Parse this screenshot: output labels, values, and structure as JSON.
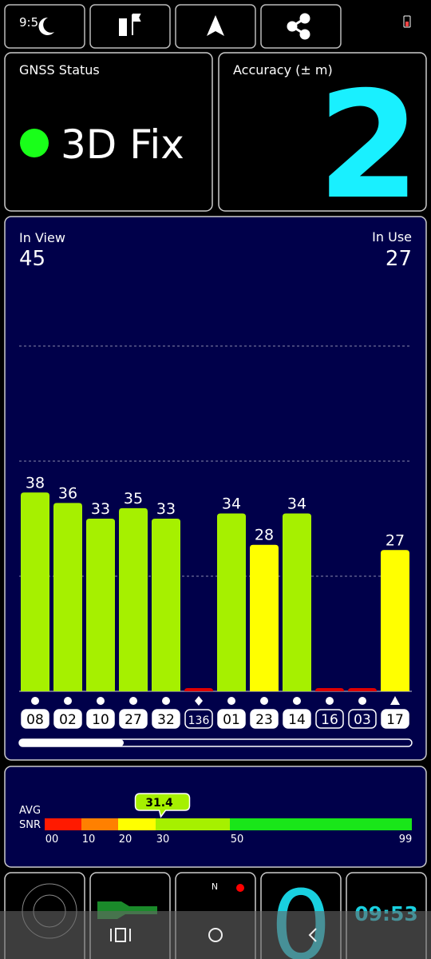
{
  "status_bar": {
    "time": "9:5"
  },
  "gnss_status": {
    "title": "GNSS Status",
    "value": "3D Fix"
  },
  "accuracy": {
    "title": "Accuracy (± m)",
    "value": 2
  },
  "signals": {
    "in_view_label": "In View",
    "in_view": 45,
    "in_use_label": "In Use",
    "in_use": 27,
    "ylim": [
      0,
      66
    ],
    "grid_lines": [
      22,
      44,
      66
    ],
    "satellites": [
      {
        "id": "08",
        "snr": 38,
        "color": "#a6f000",
        "used": true,
        "symbol": "circle"
      },
      {
        "id": "02",
        "snr": 36,
        "color": "#a6f000",
        "used": true,
        "symbol": "circle"
      },
      {
        "id": "10",
        "snr": 33,
        "color": "#a6f000",
        "used": true,
        "symbol": "circle"
      },
      {
        "id": "27",
        "snr": 35,
        "color": "#a6f000",
        "used": true,
        "symbol": "circle"
      },
      {
        "id": "32",
        "snr": 33,
        "color": "#a6f000",
        "used": true,
        "symbol": "circle"
      },
      {
        "id": "136",
        "snr": 0,
        "color": "#e00000",
        "used": false,
        "symbol": "diamond"
      },
      {
        "id": "01",
        "snr": 34,
        "color": "#a6f000",
        "used": true,
        "symbol": "circle"
      },
      {
        "id": "23",
        "snr": 28,
        "color": "#ffff00",
        "used": true,
        "symbol": "circle"
      },
      {
        "id": "14",
        "snr": 34,
        "color": "#a6f000",
        "used": true,
        "symbol": "circle"
      },
      {
        "id": "16",
        "snr": 0,
        "color": "#e00000",
        "used": false,
        "symbol": "circle"
      },
      {
        "id": "03",
        "snr": 0,
        "color": "#e00000",
        "used": false,
        "symbol": "circle"
      },
      {
        "id": "17",
        "snr": 27,
        "color": "#ffff00",
        "used": true,
        "symbol": "triangle"
      }
    ]
  },
  "snr": {
    "avg_label": "AVG",
    "snr_label": "SNR",
    "average": 31.4,
    "ticks": [
      {
        "value": 0,
        "label": "00"
      },
      10,
      20,
      30,
      50,
      99
    ],
    "segment_colors": [
      "#ff1a00",
      "#ff8000",
      "#ffff00",
      "#a6f000",
      "#19e619"
    ]
  },
  "tiles": {
    "compass_north": "N",
    "count": 0,
    "clock": "09:53"
  }
}
